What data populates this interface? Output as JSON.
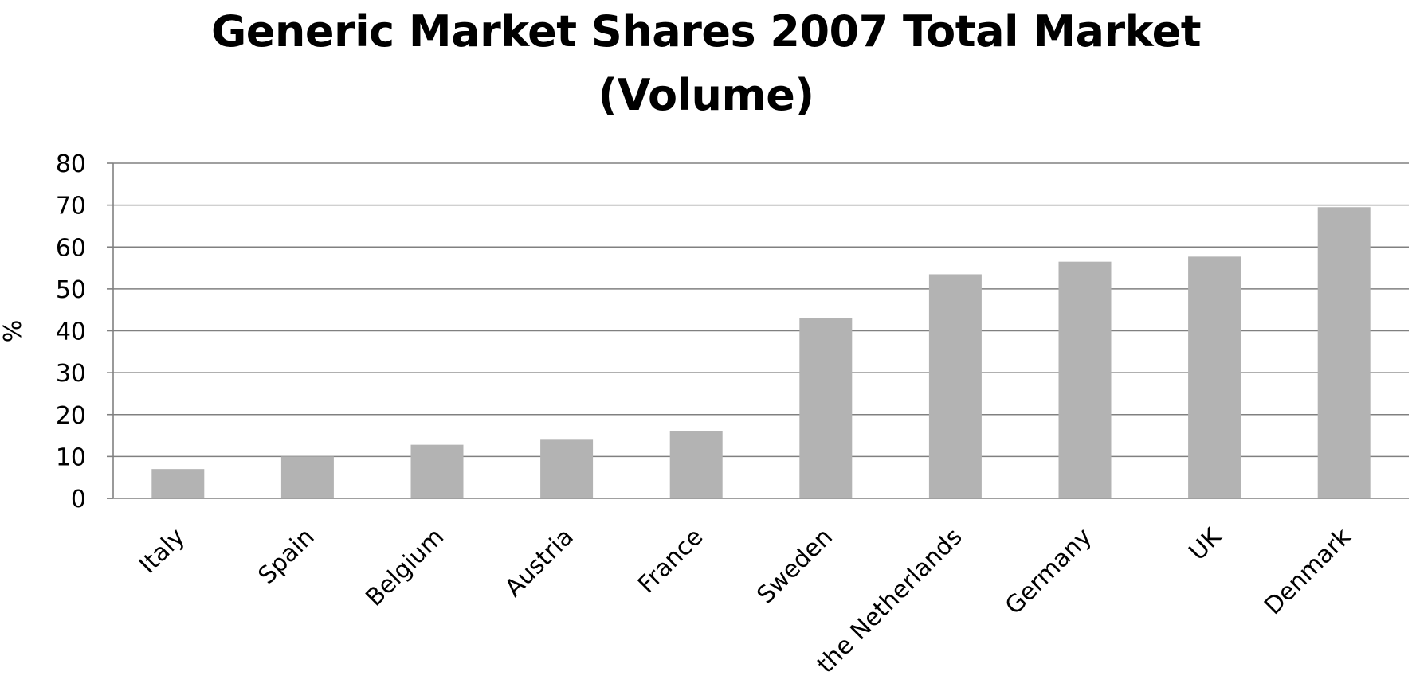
{
  "chart_data": {
    "type": "bar",
    "title": [
      "Generic Market Shares 2007 Total Market",
      "(Volume)"
    ],
    "xlabel": "",
    "ylabel": "%",
    "categories": [
      "Italy",
      "Spain",
      "Belgium",
      "Austria",
      "France",
      "Sweden",
      "the Netherlands",
      "Germany",
      "UK",
      "Denmark"
    ],
    "series": [
      {
        "values": [
          7,
          10,
          12.8,
          14,
          16,
          43,
          53.5,
          56.5,
          57.7,
          69.5
        ]
      }
    ],
    "ylim": [
      0,
      80
    ],
    "yticks": [
      0,
      10,
      20,
      30,
      40,
      50,
      60,
      70,
      80
    ],
    "grid": true,
    "legend": "none",
    "colors": {
      "bar": "#b3b3b3",
      "gridline": "#808080",
      "axis": "#808080"
    }
  }
}
